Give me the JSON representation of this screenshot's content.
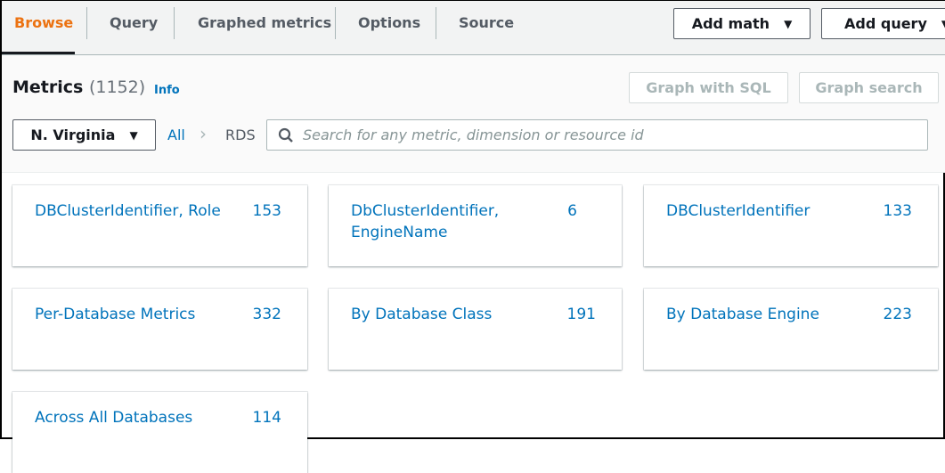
{
  "tabs": [
    {
      "label": "Browse",
      "active": true
    },
    {
      "label": "Query"
    },
    {
      "label": "Graphed metrics"
    },
    {
      "label": "Options"
    },
    {
      "label": "Source"
    }
  ],
  "actions": {
    "add_math": "Add math",
    "add_query": "Add query",
    "graph_sql": "Graph with SQL",
    "graph_search": "Graph search"
  },
  "metrics": {
    "title": "Metrics",
    "count": "(1152)",
    "info": "Info"
  },
  "filter": {
    "region": "N. Virginia",
    "crumb_all": "All",
    "crumb_sep": "›",
    "crumb_current": "RDS",
    "search_placeholder": "Search for any metric, dimension or resource id"
  },
  "cards": [
    {
      "label": "DBClusterIdentifier, Role",
      "count": "153"
    },
    {
      "label": "DbClusterIdentifier, EngineName",
      "count": "6"
    },
    {
      "label": "DBClusterIdentifier",
      "count": "133"
    },
    {
      "label": "Per-Database Metrics",
      "count": "332"
    },
    {
      "label": "By Database Class",
      "count": "191"
    },
    {
      "label": "By Database Engine",
      "count": "223"
    },
    {
      "label": "Across All Databases",
      "count": "114"
    }
  ],
  "colors": {
    "accent": "#ec7211",
    "link": "#0073bb"
  }
}
